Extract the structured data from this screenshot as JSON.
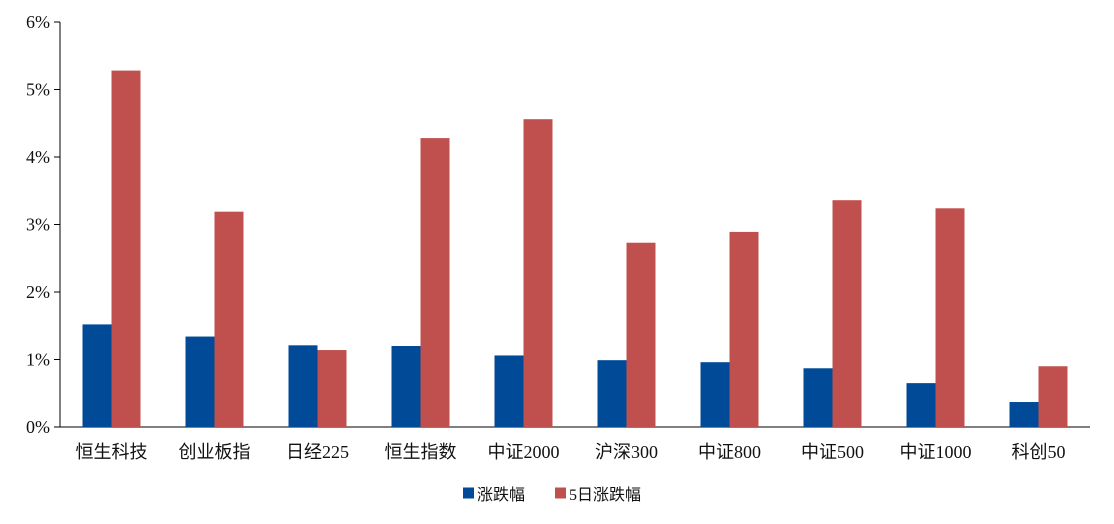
{
  "chart_data": {
    "type": "bar",
    "title": "",
    "xlabel": "",
    "ylabel": "",
    "categories": [
      "恒生科技",
      "创业板指",
      "日经225",
      "恒生指数",
      "中证2000",
      "沪深300",
      "中证800",
      "中证500",
      "中证1000",
      "科创50"
    ],
    "series": [
      {
        "name": "涨跌幅",
        "color": "#004A98",
        "values": [
          1.52,
          1.34,
          1.21,
          1.2,
          1.06,
          0.99,
          0.96,
          0.87,
          0.65,
          0.37
        ]
      },
      {
        "name": "5日涨跌幅",
        "color": "#C0504D",
        "values": [
          5.28,
          3.19,
          1.14,
          4.28,
          4.56,
          2.73,
          2.89,
          3.36,
          3.24,
          0.9
        ]
      }
    ],
    "ylim": [
      0,
      6
    ],
    "yticks": [
      0,
      1,
      2,
      3,
      4,
      5,
      6
    ],
    "ytick_labels": [
      "0%",
      "1%",
      "2%",
      "3%",
      "4%",
      "5%",
      "6%"
    ],
    "grid": false,
    "legend_position": "bottom-center"
  }
}
